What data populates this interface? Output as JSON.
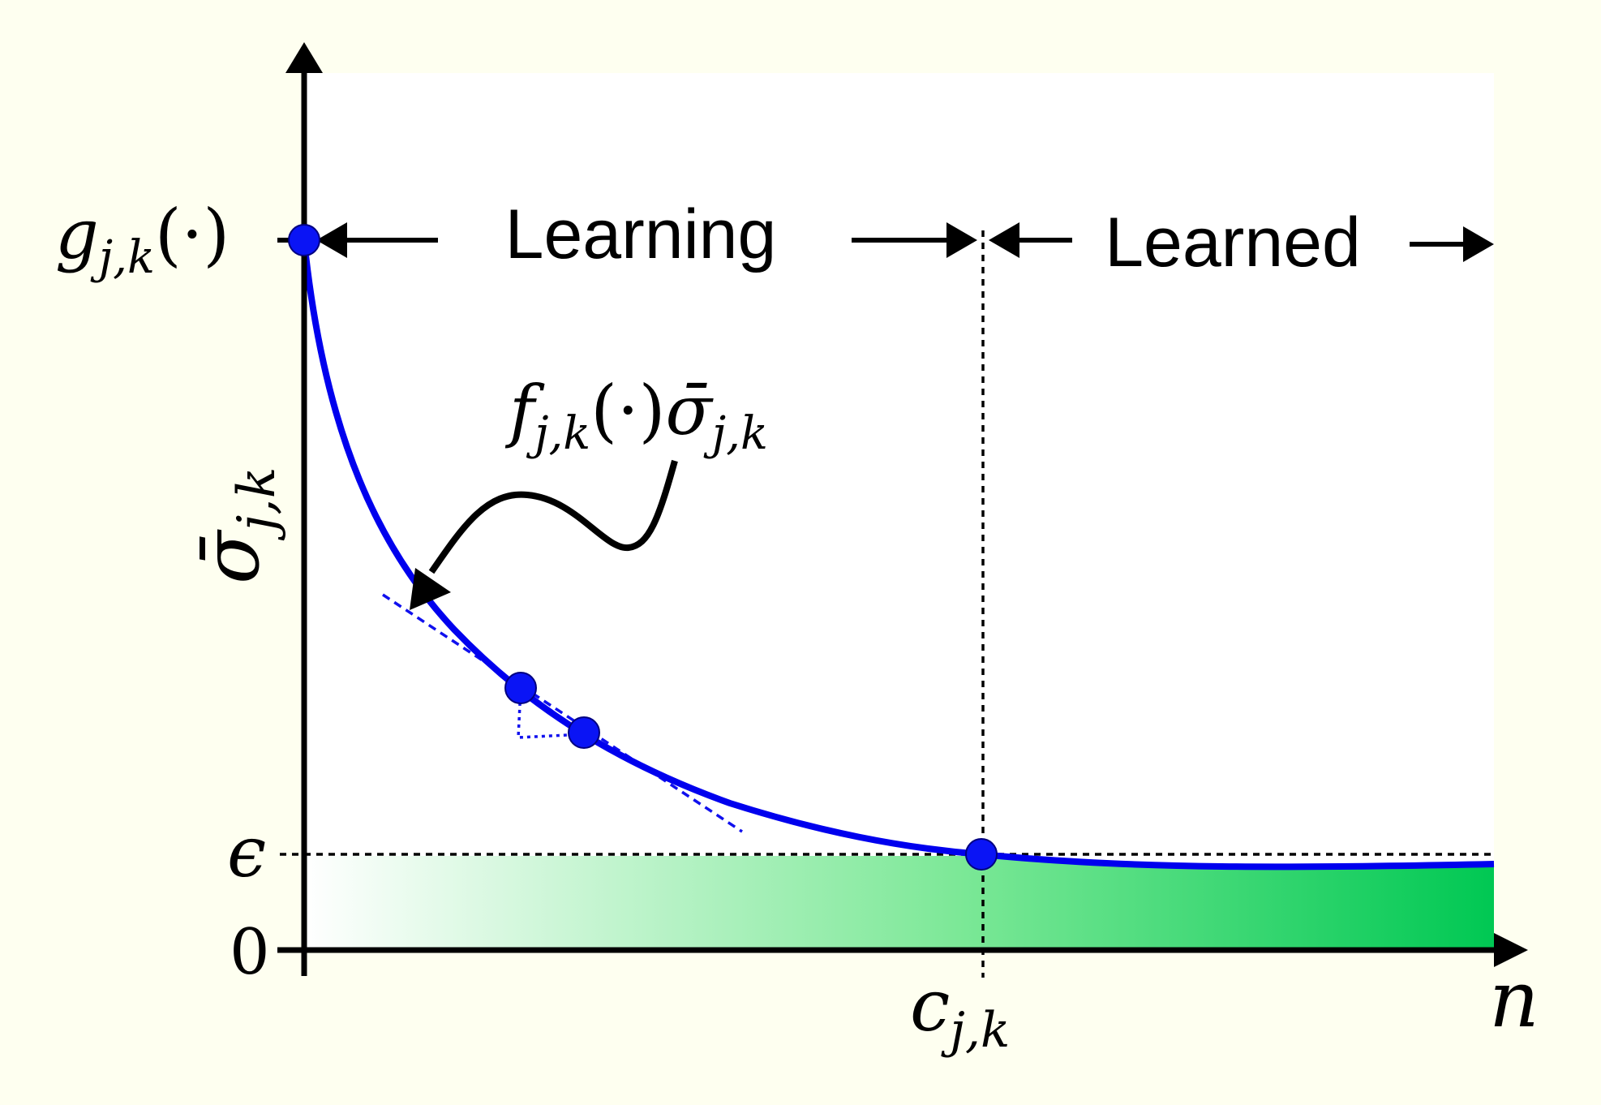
{
  "diagram": {
    "phases": {
      "learning": "Learning",
      "learned": "Learned"
    },
    "y_axis_label": {
      "base": "σ̄",
      "sub": "j,k"
    },
    "x_axis_label": "n",
    "y_ticks": {
      "zero": "0",
      "epsilon": "ϵ",
      "g_label": {
        "base": "g",
        "sub": "j,k",
        "arg": "(·)"
      }
    },
    "x_ticks": {
      "c_label": {
        "base": "c",
        "sub": "j,k"
      }
    },
    "annotation": {
      "f_base": "f",
      "f_sub": "j,k",
      "f_arg": "(·)",
      "sigma_base": "σ̄",
      "sigma_sub": "j,k"
    },
    "colors": {
      "background": "#fefff0",
      "curve": "#0000ee",
      "point_fill": "#0a14f5",
      "region_start": "#ffffff",
      "region_end": "#00c853",
      "axis": "#000000"
    }
  }
}
